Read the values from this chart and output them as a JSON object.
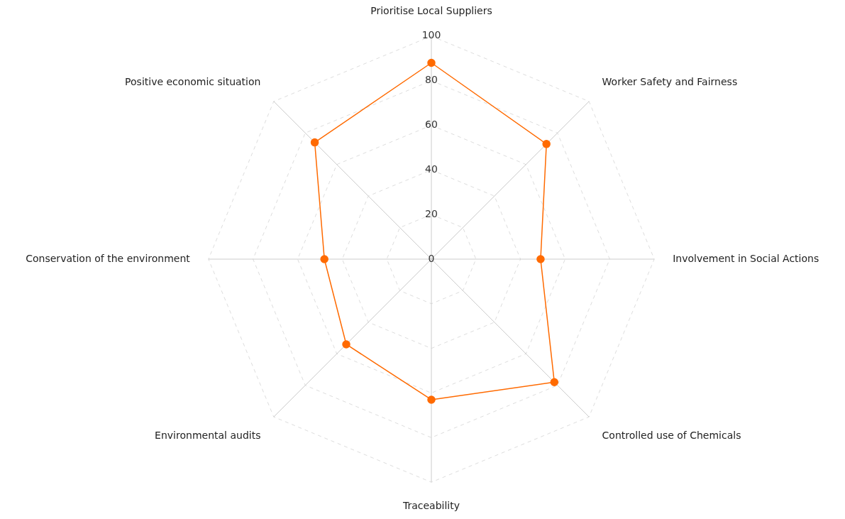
{
  "chart_data": {
    "type": "radar",
    "categories": [
      "Prioritise Local Suppliers",
      "Worker Safety and Fairness",
      "Involvement in Social Actions",
      "Controlled use of Chemicals",
      "Traceability",
      "Environmental audits",
      "Conservation of the environment",
      "Positive economic situation"
    ],
    "series": [
      {
        "color": "#ff6a00",
        "values": [
          88,
          73,
          49,
          78,
          63,
          54,
          48,
          74
        ]
      }
    ],
    "ylim": [
      0,
      100
    ],
    "yticks": [
      0,
      20,
      40,
      60,
      80,
      100
    ],
    "grid": true,
    "legend": false,
    "marker": "circle",
    "line_style": "solid"
  }
}
